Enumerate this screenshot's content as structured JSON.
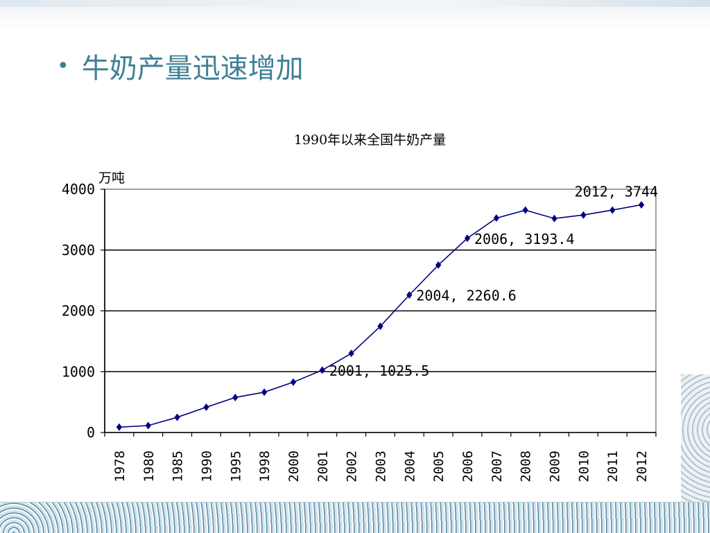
{
  "slide": {
    "bullet": "•",
    "title": "牛奶产量迅速增加"
  },
  "colors": {
    "title": "#3f7f96",
    "series": "#000080",
    "gridline": "#000000"
  },
  "chart_data": {
    "type": "line",
    "title": "1990年以来全国牛奶产量",
    "ylabel": "万吨",
    "xlabel": "",
    "ylim": [
      0,
      4000
    ],
    "yticks": [
      0,
      1000,
      2000,
      3000,
      4000
    ],
    "grid": true,
    "categories": [
      "1978",
      "1980",
      "1985",
      "1990",
      "1995",
      "1998",
      "2000",
      "2001",
      "2002",
      "2003",
      "2004",
      "2005",
      "2006",
      "2007",
      "2008",
      "2009",
      "2010",
      "2011",
      "2012"
    ],
    "series": [
      {
        "values": [
          88,
          114,
          250,
          416,
          576,
          663,
          827,
          1025.5,
          1300,
          1746,
          2260.6,
          2753,
          3193.4,
          3525,
          3656,
          3519,
          3576,
          3657,
          3744
        ]
      }
    ],
    "annotations": [
      {
        "category": "2001",
        "text": "2001, 1025.5"
      },
      {
        "category": "2004",
        "text": "2004, 2260.6"
      },
      {
        "category": "2006",
        "text": "2006, 3193.4"
      },
      {
        "category": "2012",
        "text": "2012, 3744"
      }
    ]
  }
}
